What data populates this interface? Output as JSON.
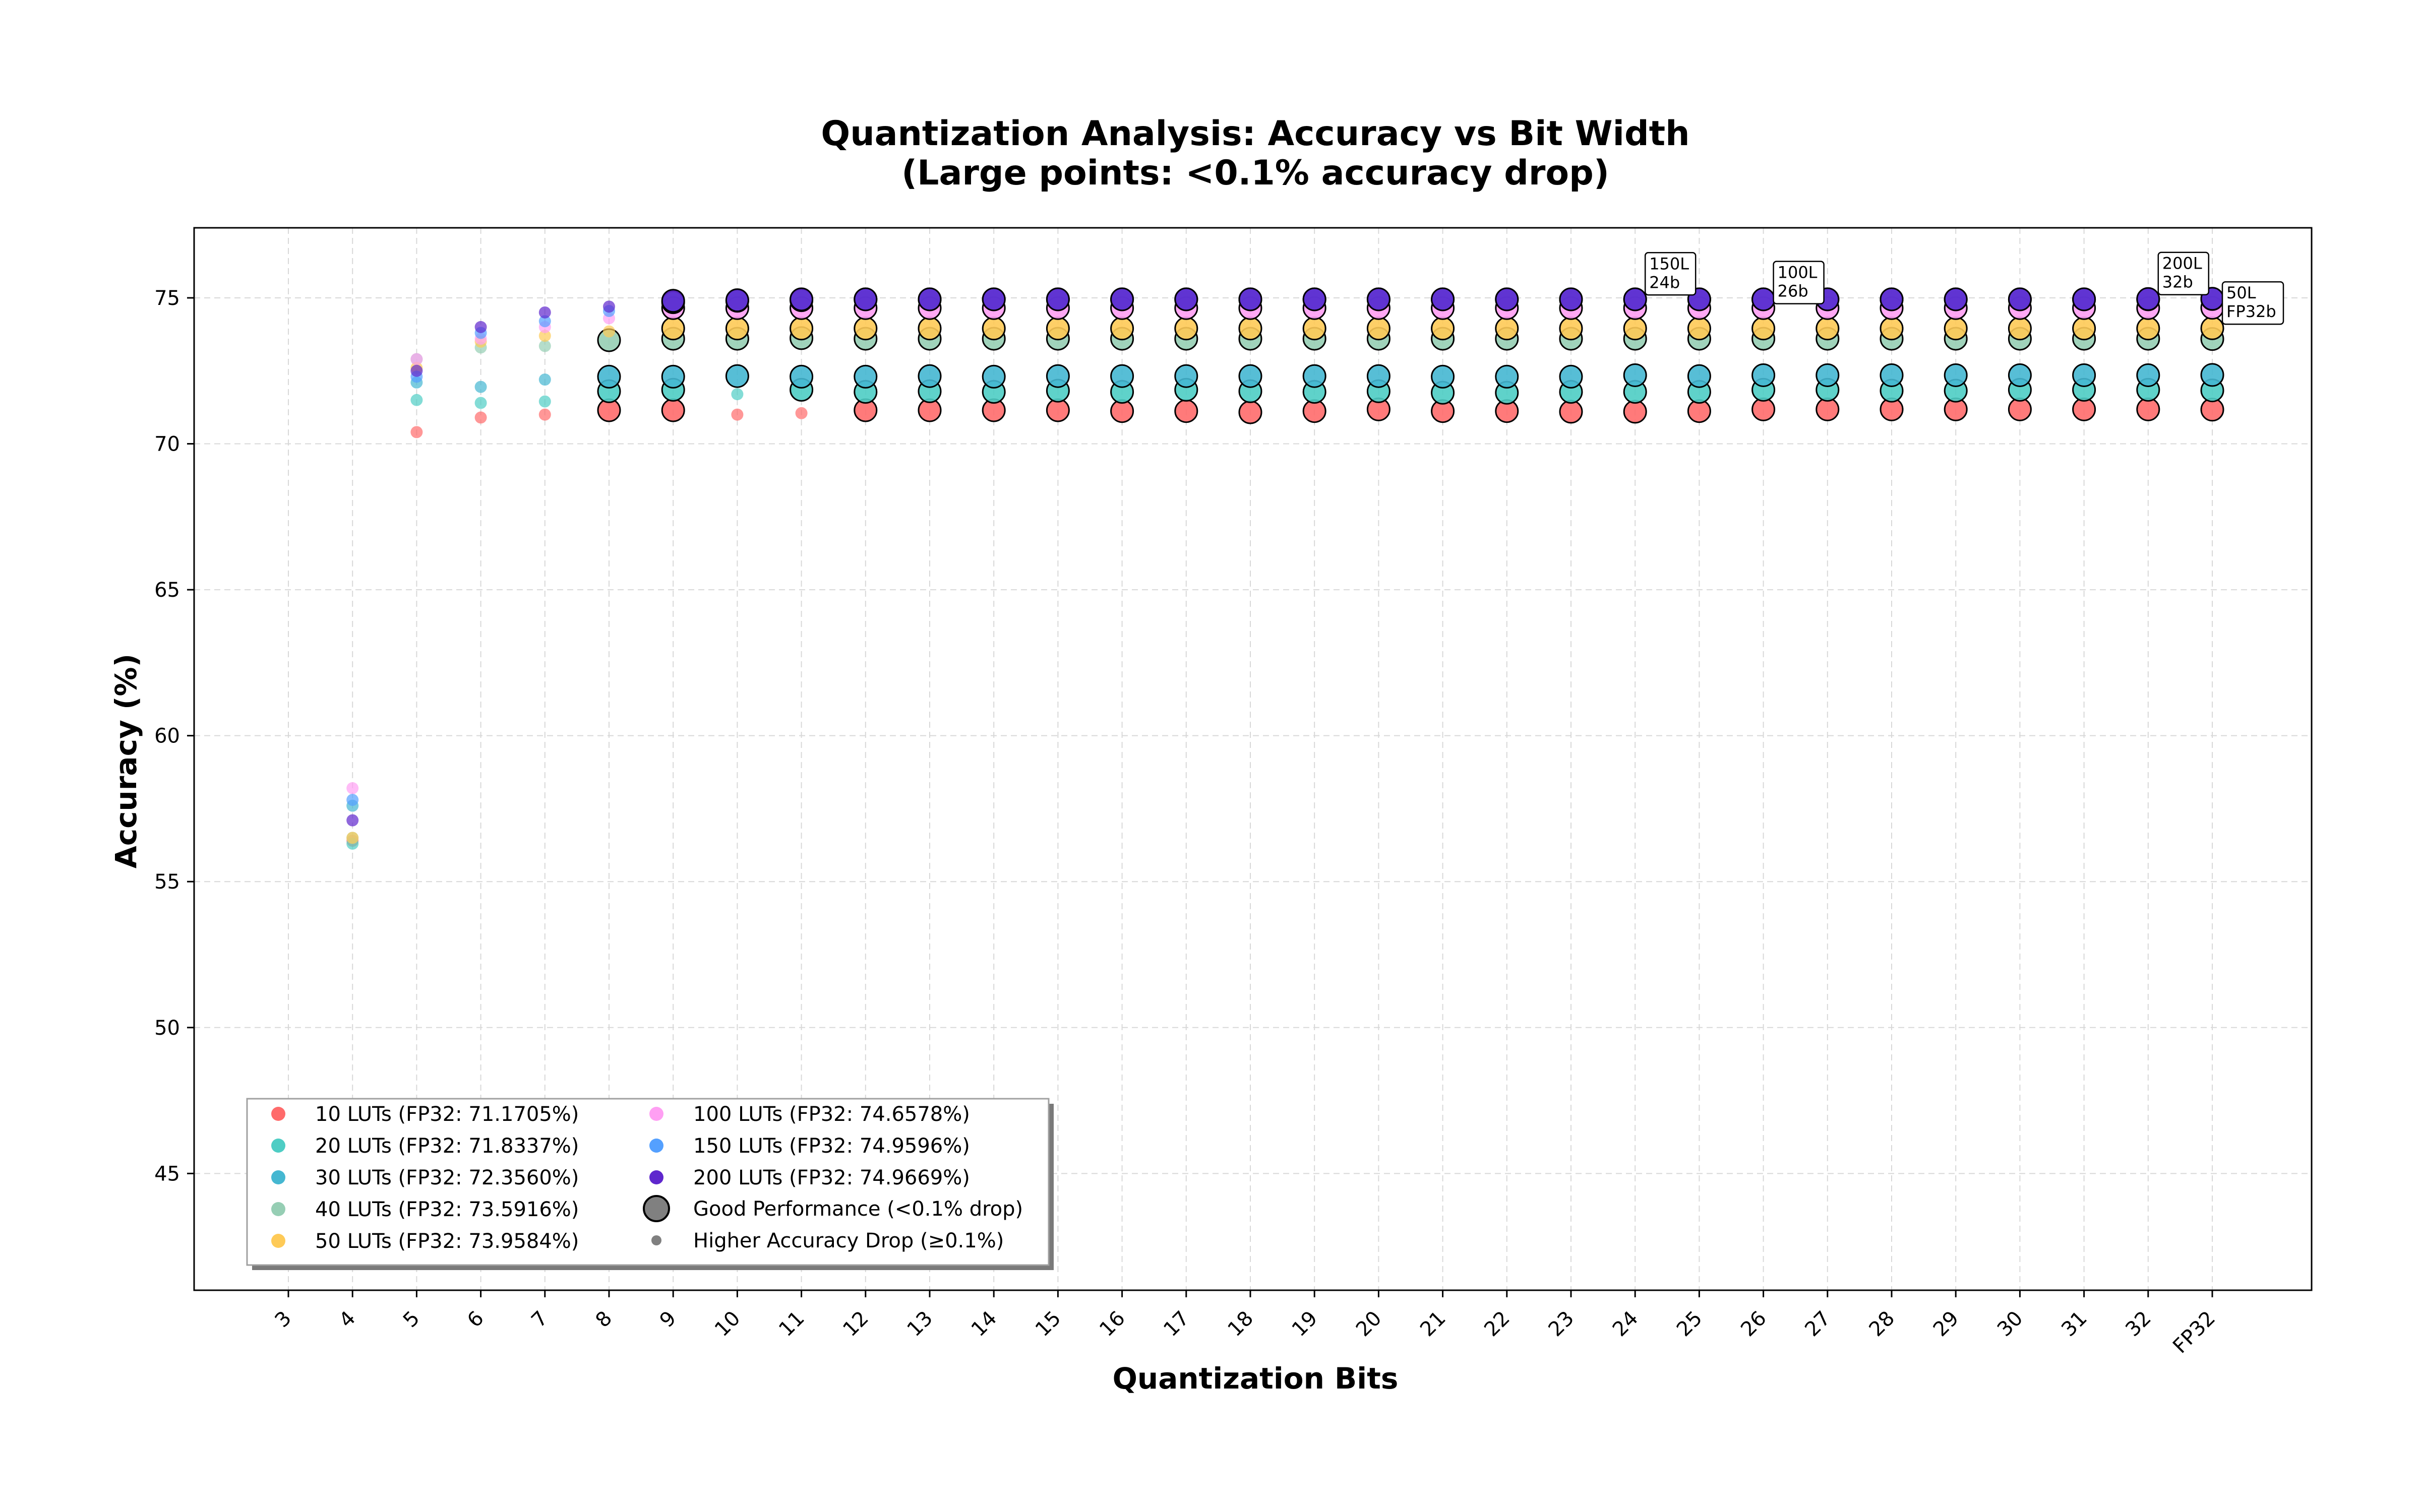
{
  "chart_data": {
    "type": "scatter",
    "title": [
      "Quantization Analysis: Accuracy vs Bit Width",
      "(Large points: <0.1% accuracy drop)"
    ],
    "xlabel": "Quantization Bits",
    "ylabel": "Accuracy (%)",
    "ylim": [
      41,
      77.4
    ],
    "yticks": [
      45,
      50,
      55,
      60,
      65,
      70,
      75
    ],
    "grid": true,
    "legend_position": "lower-left",
    "categories": [
      "3",
      "4",
      "5",
      "6",
      "7",
      "8",
      "9",
      "10",
      "11",
      "12",
      "13",
      "14",
      "15",
      "16",
      "17",
      "18",
      "19",
      "20",
      "21",
      "22",
      "23",
      "24",
      "25",
      "26",
      "27",
      "28",
      "29",
      "30",
      "31",
      "32",
      "FP32"
    ],
    "series": [
      {
        "name": "10 LUTs (FP32: 71.1705%)",
        "color": "#ff6b6b",
        "fp32": 71.1705,
        "points": [
          [
            null,
            null
          ],
          [
            56.4,
            false
          ],
          [
            70.4,
            false
          ],
          [
            70.9,
            false
          ],
          [
            71.0,
            false
          ],
          [
            71.15,
            true
          ],
          [
            71.15,
            true
          ],
          [
            71.0,
            false
          ],
          [
            71.05,
            false
          ],
          [
            71.15,
            true
          ],
          [
            71.15,
            true
          ],
          [
            71.15,
            true
          ],
          [
            71.15,
            true
          ],
          [
            71.12,
            true
          ],
          [
            71.12,
            true
          ],
          [
            71.08,
            true
          ],
          [
            71.12,
            true
          ],
          [
            71.18,
            true
          ],
          [
            71.12,
            true
          ],
          [
            71.12,
            true
          ],
          [
            71.1,
            true
          ],
          [
            71.1,
            true
          ],
          [
            71.12,
            true
          ],
          [
            71.18,
            true
          ],
          [
            71.18,
            true
          ],
          [
            71.18,
            true
          ],
          [
            71.18,
            true
          ],
          [
            71.18,
            true
          ],
          [
            71.18,
            true
          ],
          [
            71.18,
            true
          ],
          [
            71.17,
            true
          ]
        ]
      },
      {
        "name": "20 LUTs (FP32: 71.8337%)",
        "color": "#4ecdc4",
        "fp32": 71.8337,
        "points": [
          [
            null,
            null
          ],
          [
            56.3,
            false
          ],
          [
            71.5,
            false
          ],
          [
            71.4,
            false
          ],
          [
            71.45,
            false
          ],
          [
            71.8,
            true
          ],
          [
            71.85,
            true
          ],
          [
            71.7,
            false
          ],
          [
            71.85,
            true
          ],
          [
            71.78,
            true
          ],
          [
            71.8,
            true
          ],
          [
            71.78,
            true
          ],
          [
            71.82,
            true
          ],
          [
            71.78,
            true
          ],
          [
            71.85,
            true
          ],
          [
            71.8,
            true
          ],
          [
            71.78,
            true
          ],
          [
            71.8,
            true
          ],
          [
            71.75,
            true
          ],
          [
            71.75,
            true
          ],
          [
            71.78,
            true
          ],
          [
            71.78,
            true
          ],
          [
            71.78,
            true
          ],
          [
            71.85,
            true
          ],
          [
            71.85,
            true
          ],
          [
            71.82,
            true
          ],
          [
            71.82,
            true
          ],
          [
            71.85,
            true
          ],
          [
            71.85,
            true
          ],
          [
            71.85,
            true
          ],
          [
            71.83,
            true
          ]
        ]
      },
      {
        "name": "30 LUTs (FP32: 72.3560%)",
        "color": "#45b7d1",
        "fp32": 72.356,
        "points": [
          [
            null,
            null
          ],
          [
            57.6,
            false
          ],
          [
            72.1,
            false
          ],
          [
            71.95,
            false
          ],
          [
            72.2,
            false
          ],
          [
            72.3,
            true
          ],
          [
            72.3,
            true
          ],
          [
            72.32,
            true
          ],
          [
            72.3,
            true
          ],
          [
            72.3,
            true
          ],
          [
            72.32,
            true
          ],
          [
            72.3,
            true
          ],
          [
            72.32,
            true
          ],
          [
            72.32,
            true
          ],
          [
            72.32,
            true
          ],
          [
            72.32,
            true
          ],
          [
            72.32,
            true
          ],
          [
            72.32,
            true
          ],
          [
            72.3,
            true
          ],
          [
            72.3,
            true
          ],
          [
            72.3,
            true
          ],
          [
            72.35,
            true
          ],
          [
            72.32,
            true
          ],
          [
            72.35,
            true
          ],
          [
            72.35,
            true
          ],
          [
            72.35,
            true
          ],
          [
            72.35,
            true
          ],
          [
            72.35,
            true
          ],
          [
            72.35,
            true
          ],
          [
            72.35,
            true
          ],
          [
            72.36,
            true
          ]
        ]
      },
      {
        "name": "40 LUTs (FP32: 73.5916%)",
        "color": "#96ceb4",
        "fp32": 73.5916,
        "points": [
          [
            null,
            null
          ],
          [
            56.5,
            false
          ],
          [
            72.9,
            false
          ],
          [
            73.3,
            false
          ],
          [
            73.35,
            false
          ],
          [
            73.55,
            true
          ],
          [
            73.6,
            true
          ],
          [
            73.6,
            true
          ],
          [
            73.62,
            true
          ],
          [
            73.6,
            true
          ],
          [
            73.6,
            true
          ],
          [
            73.6,
            true
          ],
          [
            73.6,
            true
          ],
          [
            73.6,
            true
          ],
          [
            73.6,
            true
          ],
          [
            73.6,
            true
          ],
          [
            73.6,
            true
          ],
          [
            73.6,
            true
          ],
          [
            73.6,
            true
          ],
          [
            73.6,
            true
          ],
          [
            73.6,
            true
          ],
          [
            73.6,
            true
          ],
          [
            73.6,
            true
          ],
          [
            73.6,
            true
          ],
          [
            73.6,
            true
          ],
          [
            73.6,
            true
          ],
          [
            73.6,
            true
          ],
          [
            73.6,
            true
          ],
          [
            73.6,
            true
          ],
          [
            73.6,
            true
          ],
          [
            73.59,
            true
          ]
        ]
      },
      {
        "name": "50 LUTs (FP32: 73.9584%)",
        "color": "#feca57",
        "fp32": 73.9584,
        "points": [
          [
            null,
            null
          ],
          [
            56.5,
            false
          ],
          [
            72.6,
            false
          ],
          [
            73.5,
            false
          ],
          [
            73.7,
            false
          ],
          [
            73.85,
            false
          ],
          [
            73.95,
            true
          ],
          [
            73.95,
            true
          ],
          [
            73.95,
            true
          ],
          [
            73.95,
            true
          ],
          [
            73.95,
            true
          ],
          [
            73.95,
            true
          ],
          [
            73.95,
            true
          ],
          [
            73.95,
            true
          ],
          [
            73.95,
            true
          ],
          [
            73.95,
            true
          ],
          [
            73.95,
            true
          ],
          [
            73.95,
            true
          ],
          [
            73.95,
            true
          ],
          [
            73.95,
            true
          ],
          [
            73.95,
            true
          ],
          [
            73.95,
            true
          ],
          [
            73.95,
            true
          ],
          [
            73.95,
            true
          ],
          [
            73.95,
            true
          ],
          [
            73.95,
            true
          ],
          [
            73.95,
            true
          ],
          [
            73.95,
            true
          ],
          [
            73.95,
            true
          ],
          [
            73.95,
            true
          ],
          [
            73.96,
            true
          ]
        ]
      },
      {
        "name": "100 LUTs (FP32: 74.6578%)",
        "color": "#ff9ff3",
        "fp32": 74.6578,
        "points": [
          [
            null,
            null
          ],
          [
            58.2,
            false
          ],
          [
            72.9,
            false
          ],
          [
            73.6,
            false
          ],
          [
            74.0,
            false
          ],
          [
            74.3,
            false
          ],
          [
            74.65,
            true
          ],
          [
            74.65,
            true
          ],
          [
            74.65,
            true
          ],
          [
            74.65,
            true
          ],
          [
            74.65,
            true
          ],
          [
            74.65,
            true
          ],
          [
            74.65,
            true
          ],
          [
            74.65,
            true
          ],
          [
            74.65,
            true
          ],
          [
            74.65,
            true
          ],
          [
            74.65,
            true
          ],
          [
            74.65,
            true
          ],
          [
            74.65,
            true
          ],
          [
            74.65,
            true
          ],
          [
            74.65,
            true
          ],
          [
            74.65,
            true
          ],
          [
            74.65,
            true
          ],
          [
            74.65,
            true
          ],
          [
            74.65,
            true
          ],
          [
            74.65,
            true
          ],
          [
            74.65,
            true
          ],
          [
            74.65,
            true
          ],
          [
            74.65,
            true
          ],
          [
            74.65,
            true
          ],
          [
            74.66,
            true
          ]
        ]
      },
      {
        "name": "150 LUTs (FP32: 74.9596%)",
        "color": "#54a0ff",
        "fp32": 74.9596,
        "points": [
          [
            null,
            null
          ],
          [
            57.8,
            false
          ],
          [
            72.3,
            false
          ],
          [
            73.8,
            false
          ],
          [
            74.2,
            false
          ],
          [
            74.55,
            false
          ],
          [
            74.85,
            true
          ],
          [
            74.9,
            true
          ],
          [
            74.92,
            true
          ],
          [
            74.95,
            true
          ],
          [
            74.95,
            true
          ],
          [
            74.95,
            true
          ],
          [
            74.95,
            true
          ],
          [
            74.95,
            true
          ],
          [
            74.95,
            true
          ],
          [
            74.95,
            true
          ],
          [
            74.95,
            true
          ],
          [
            74.95,
            true
          ],
          [
            74.95,
            true
          ],
          [
            74.95,
            true
          ],
          [
            74.95,
            true
          ],
          [
            74.95,
            true
          ],
          [
            74.95,
            true
          ],
          [
            74.95,
            true
          ],
          [
            74.95,
            true
          ],
          [
            74.95,
            true
          ],
          [
            74.95,
            true
          ],
          [
            74.95,
            true
          ],
          [
            74.95,
            true
          ],
          [
            74.95,
            true
          ],
          [
            74.96,
            true
          ]
        ]
      },
      {
        "name": "200 LUTs (FP32: 74.9669%)",
        "color": "#5f27cd",
        "fp32": 74.9669,
        "points": [
          [
            null,
            null
          ],
          [
            57.1,
            false
          ],
          [
            72.5,
            false
          ],
          [
            74.0,
            false
          ],
          [
            74.5,
            false
          ],
          [
            74.7,
            false
          ],
          [
            74.9,
            true
          ],
          [
            74.92,
            true
          ],
          [
            74.95,
            true
          ],
          [
            74.95,
            true
          ],
          [
            74.95,
            true
          ],
          [
            74.95,
            true
          ],
          [
            74.95,
            true
          ],
          [
            74.95,
            true
          ],
          [
            74.95,
            true
          ],
          [
            74.95,
            true
          ],
          [
            74.95,
            true
          ],
          [
            74.95,
            true
          ],
          [
            74.95,
            true
          ],
          [
            74.95,
            true
          ],
          [
            74.95,
            true
          ],
          [
            74.95,
            true
          ],
          [
            74.95,
            true
          ],
          [
            74.95,
            true
          ],
          [
            74.95,
            true
          ],
          [
            74.95,
            true
          ],
          [
            74.95,
            true
          ],
          [
            74.95,
            true
          ],
          [
            74.95,
            true
          ],
          [
            74.96,
            true
          ],
          [
            74.97,
            true
          ]
        ]
      }
    ],
    "legend_extra": [
      "Good Performance (<0.1% drop)",
      "Higher Accuracy Drop (≥0.1%)"
    ],
    "annotations": [
      {
        "lines": [
          "150L",
          "24b"
        ],
        "category": "24",
        "y": 74.96
      },
      {
        "lines": [
          "100L",
          "26b"
        ],
        "category": "26",
        "y": 74.66
      },
      {
        "lines": [
          "200L",
          "32b"
        ],
        "category": "32",
        "y": 74.97
      },
      {
        "lines": [
          "50L",
          "FP32b"
        ],
        "category": "FP32",
        "y": 73.96
      }
    ]
  }
}
